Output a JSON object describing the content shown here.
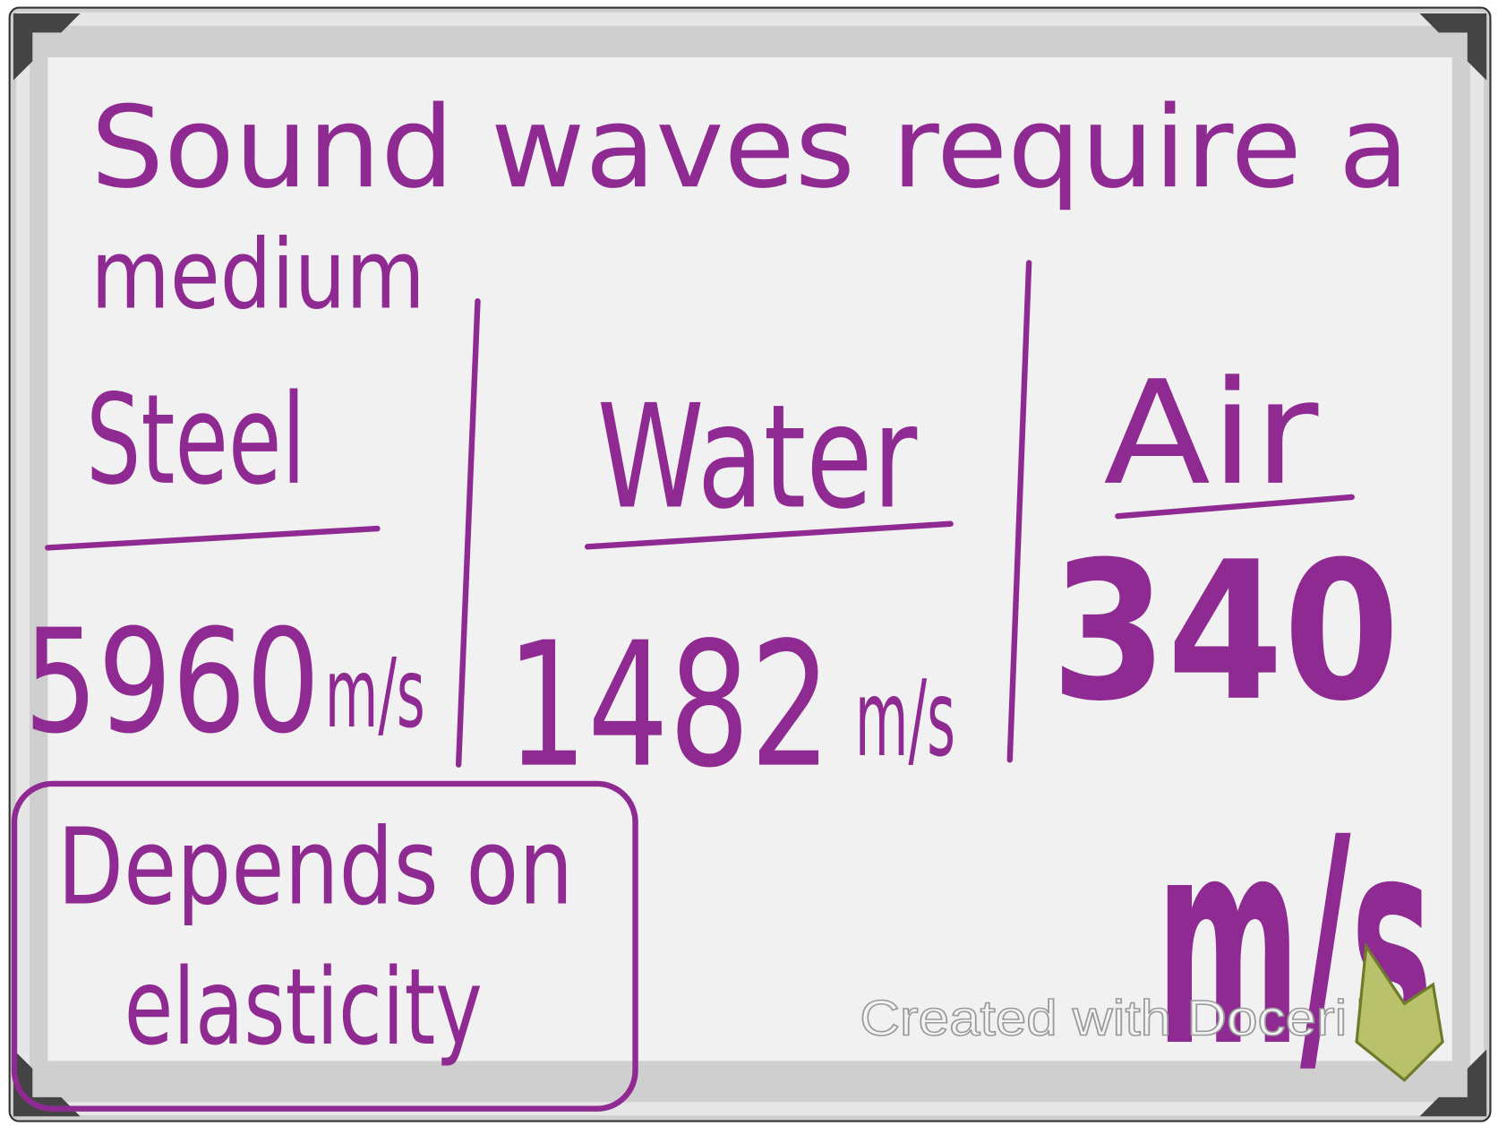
{
  "board": {
    "title_lines": [
      "Sound waves require a",
      "medium"
    ],
    "columns": [
      {
        "label": "Steel",
        "value": "5960",
        "unit": "m/s"
      },
      {
        "label": "Water",
        "value": "1482",
        "unit": "m/s"
      },
      {
        "label": "Air",
        "value": "340",
        "unit": "m/s"
      }
    ],
    "note_lines": [
      "Depends on",
      "elasticity"
    ],
    "watermark": "Created with Doceri"
  }
}
